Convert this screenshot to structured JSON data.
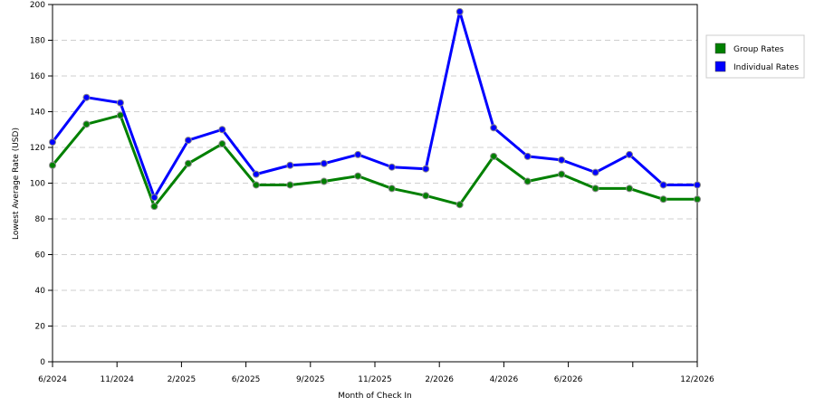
{
  "chart_data": {
    "type": "line",
    "title": "",
    "xlabel": "Month of Check In",
    "ylabel": "Lowest Average Rate (USD)",
    "ylim": [
      0,
      200
    ],
    "yticks": [
      0,
      20,
      40,
      60,
      80,
      100,
      120,
      140,
      160,
      180,
      200
    ],
    "x_tick_labels": [
      "6/2024",
      "11/2024",
      "2/2025",
      "6/2025",
      "9/2025",
      "11/2025",
      "2/2026",
      "4/2026",
      "6/2026",
      "",
      "12/2026"
    ],
    "grid": true,
    "legend_position": "right",
    "series": [
      {
        "name": "Group Rates",
        "color": "#008000",
        "values": [
          110,
          133,
          138,
          87,
          111,
          122,
          99,
          99,
          101,
          104,
          97,
          93,
          88,
          115,
          101,
          105,
          97,
          97,
          91,
          91
        ]
      },
      {
        "name": "Individual Rates",
        "color": "#0000ff",
        "values": [
          123,
          148,
          145,
          92,
          124,
          130,
          105,
          110,
          111,
          116,
          109,
          108,
          196,
          131,
          115,
          113,
          106,
          116,
          99,
          99
        ]
      }
    ]
  }
}
